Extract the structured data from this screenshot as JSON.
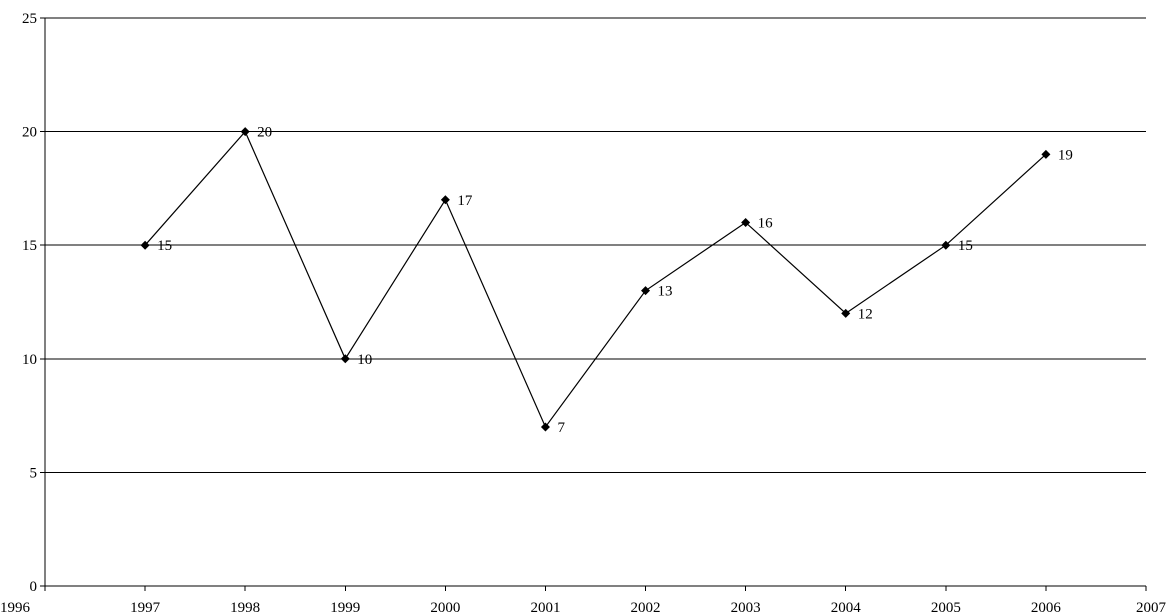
{
  "chart_data": {
    "type": "line",
    "title": "",
    "xlabel": "",
    "ylabel": "",
    "xlim": [
      1996,
      2007
    ],
    "ylim": [
      0,
      25
    ],
    "x_ticks": [
      1996,
      1997,
      1998,
      1999,
      2000,
      2001,
      2002,
      2003,
      2004,
      2005,
      2006,
      2007
    ],
    "y_ticks": [
      0,
      5,
      10,
      15,
      20,
      25
    ],
    "grid": "horizontal",
    "legend": "none",
    "series": [
      {
        "x": [
          1997,
          1998,
          1999,
          2000,
          2001,
          2002,
          2003,
          2004,
          2005,
          2006
        ],
        "y": [
          15,
          20,
          10,
          17,
          7,
          13,
          16,
          12,
          15,
          19
        ],
        "marker": "diamond",
        "color": "#000000",
        "data_labels": true
      }
    ]
  }
}
